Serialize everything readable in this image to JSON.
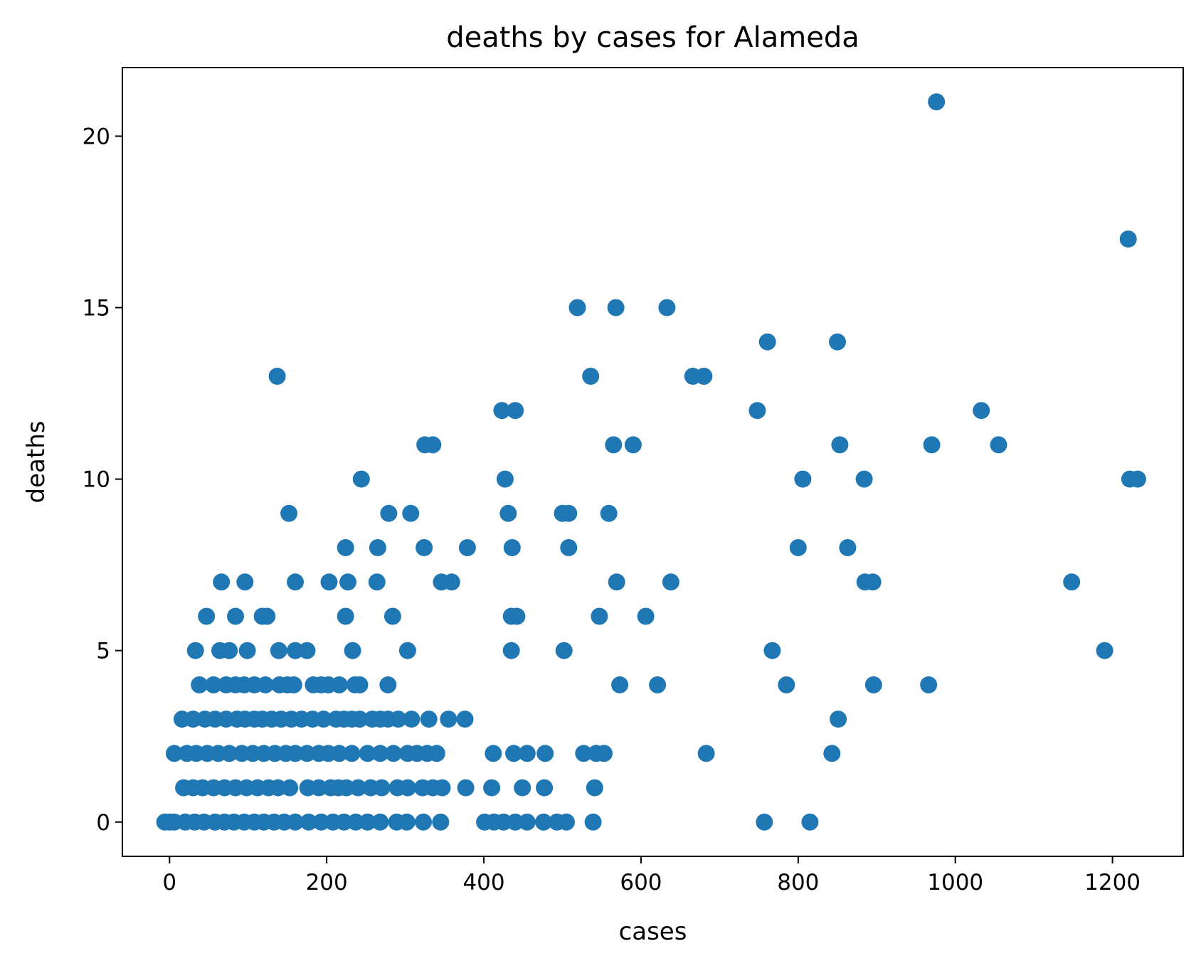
{
  "chart_data": {
    "type": "scatter",
    "title": "deaths by cases for Alameda",
    "xlabel": "cases",
    "ylabel": "deaths",
    "xlim": [
      -60,
      1290
    ],
    "ylim": [
      -1,
      22
    ],
    "xticks": [
      0,
      200,
      400,
      600,
      800,
      1000,
      1200
    ],
    "yticks": [
      0,
      5,
      10,
      15,
      20
    ],
    "grid": false,
    "legend": "none",
    "marker_color": "#1f77b4",
    "series": [
      {
        "points": [
          [
            976,
            21
          ],
          [
            1220,
            17
          ],
          [
            519,
            15
          ],
          [
            568,
            15
          ],
          [
            633,
            15
          ],
          [
            761,
            14
          ],
          [
            850,
            14
          ],
          [
            137,
            13
          ],
          [
            536,
            13
          ],
          [
            666,
            13
          ],
          [
            680,
            13
          ],
          [
            423,
            12
          ],
          [
            440,
            12
          ],
          [
            748,
            12
          ],
          [
            1033,
            12
          ],
          [
            325,
            11
          ],
          [
            335,
            11
          ],
          [
            565,
            11
          ],
          [
            590,
            11
          ],
          [
            853,
            11
          ],
          [
            970,
            11
          ],
          [
            1055,
            11
          ],
          [
            244,
            10
          ],
          [
            427,
            10
          ],
          [
            806,
            10
          ],
          [
            884,
            10
          ],
          [
            1222,
            10
          ],
          [
            1232,
            10
          ],
          [
            152,
            9
          ],
          [
            279,
            9
          ],
          [
            307,
            9
          ],
          [
            431,
            9
          ],
          [
            500,
            9
          ],
          [
            508,
            9
          ],
          [
            559,
            9
          ],
          [
            224,
            8
          ],
          [
            265,
            8
          ],
          [
            324,
            8
          ],
          [
            379,
            8
          ],
          [
            436,
            8
          ],
          [
            508,
            8
          ],
          [
            800,
            8
          ],
          [
            863,
            8
          ],
          [
            66,
            7
          ],
          [
            96,
            7
          ],
          [
            160,
            7
          ],
          [
            203,
            7
          ],
          [
            227,
            7
          ],
          [
            264,
            7
          ],
          [
            346,
            7
          ],
          [
            359,
            7
          ],
          [
            569,
            7
          ],
          [
            638,
            7
          ],
          [
            885,
            7
          ],
          [
            895,
            7
          ],
          [
            1148,
            7
          ],
          [
            47,
            6
          ],
          [
            84,
            6
          ],
          [
            118,
            6
          ],
          [
            124,
            6
          ],
          [
            224,
            6
          ],
          [
            284,
            6
          ],
          [
            435,
            6
          ],
          [
            442,
            6
          ],
          [
            547,
            6
          ],
          [
            606,
            6
          ],
          [
            33,
            5
          ],
          [
            64,
            5
          ],
          [
            76,
            5
          ],
          [
            99,
            5
          ],
          [
            139,
            5
          ],
          [
            160,
            5
          ],
          [
            175,
            5
          ],
          [
            233,
            5
          ],
          [
            303,
            5
          ],
          [
            435,
            5
          ],
          [
            502,
            5
          ],
          [
            767,
            5
          ],
          [
            1190,
            5
          ],
          [
            38,
            4
          ],
          [
            56,
            4
          ],
          [
            72,
            4
          ],
          [
            84,
            4
          ],
          [
            95,
            4
          ],
          [
            108,
            4
          ],
          [
            122,
            4
          ],
          [
            140,
            4
          ],
          [
            150,
            4
          ],
          [
            158,
            4
          ],
          [
            183,
            4
          ],
          [
            193,
            4
          ],
          [
            202,
            4
          ],
          [
            216,
            4
          ],
          [
            236,
            4
          ],
          [
            242,
            4
          ],
          [
            278,
            4
          ],
          [
            573,
            4
          ],
          [
            621,
            4
          ],
          [
            785,
            4
          ],
          [
            896,
            4
          ],
          [
            966,
            4
          ],
          [
            16,
            3
          ],
          [
            30,
            3
          ],
          [
            45,
            3
          ],
          [
            58,
            3
          ],
          [
            72,
            3
          ],
          [
            86,
            3
          ],
          [
            96,
            3
          ],
          [
            108,
            3
          ],
          [
            118,
            3
          ],
          [
            130,
            3
          ],
          [
            142,
            3
          ],
          [
            155,
            3
          ],
          [
            168,
            3
          ],
          [
            182,
            3
          ],
          [
            196,
            3
          ],
          [
            212,
            3
          ],
          [
            222,
            3
          ],
          [
            232,
            3
          ],
          [
            242,
            3
          ],
          [
            258,
            3
          ],
          [
            268,
            3
          ],
          [
            278,
            3
          ],
          [
            291,
            3
          ],
          [
            308,
            3
          ],
          [
            330,
            3
          ],
          [
            355,
            3
          ],
          [
            376,
            3
          ],
          [
            851,
            3
          ],
          [
            6,
            2
          ],
          [
            22,
            2
          ],
          [
            34,
            2
          ],
          [
            48,
            2
          ],
          [
            62,
            2
          ],
          [
            76,
            2
          ],
          [
            92,
            2
          ],
          [
            106,
            2
          ],
          [
            120,
            2
          ],
          [
            134,
            2
          ],
          [
            148,
            2
          ],
          [
            160,
            2
          ],
          [
            175,
            2
          ],
          [
            190,
            2
          ],
          [
            202,
            2
          ],
          [
            216,
            2
          ],
          [
            232,
            2
          ],
          [
            252,
            2
          ],
          [
            268,
            2
          ],
          [
            285,
            2
          ],
          [
            303,
            2
          ],
          [
            315,
            2
          ],
          [
            328,
            2
          ],
          [
            340,
            2
          ],
          [
            412,
            2
          ],
          [
            438,
            2
          ],
          [
            455,
            2
          ],
          [
            478,
            2
          ],
          [
            527,
            2
          ],
          [
            543,
            2
          ],
          [
            553,
            2
          ],
          [
            683,
            2
          ],
          [
            843,
            2
          ],
          [
            18,
            1
          ],
          [
            30,
            1
          ],
          [
            42,
            1
          ],
          [
            56,
            1
          ],
          [
            70,
            1
          ],
          [
            84,
            1
          ],
          [
            98,
            1
          ],
          [
            112,
            1
          ],
          [
            126,
            1
          ],
          [
            138,
            1
          ],
          [
            153,
            1
          ],
          [
            176,
            1
          ],
          [
            190,
            1
          ],
          [
            205,
            1
          ],
          [
            215,
            1
          ],
          [
            225,
            1
          ],
          [
            240,
            1
          ],
          [
            256,
            1
          ],
          [
            270,
            1
          ],
          [
            290,
            1
          ],
          [
            303,
            1
          ],
          [
            322,
            1
          ],
          [
            335,
            1
          ],
          [
            347,
            1
          ],
          [
            377,
            1
          ],
          [
            410,
            1
          ],
          [
            449,
            1
          ],
          [
            477,
            1
          ],
          [
            541,
            1
          ],
          [
            -6,
            0
          ],
          [
            0,
            0
          ],
          [
            6,
            0
          ],
          [
            20,
            0
          ],
          [
            32,
            0
          ],
          [
            44,
            0
          ],
          [
            58,
            0
          ],
          [
            70,
            0
          ],
          [
            82,
            0
          ],
          [
            95,
            0
          ],
          [
            108,
            0
          ],
          [
            120,
            0
          ],
          [
            133,
            0
          ],
          [
            146,
            0
          ],
          [
            160,
            0
          ],
          [
            177,
            0
          ],
          [
            193,
            0
          ],
          [
            208,
            0
          ],
          [
            222,
            0
          ],
          [
            237,
            0
          ],
          [
            252,
            0
          ],
          [
            268,
            0
          ],
          [
            289,
            0
          ],
          [
            302,
            0
          ],
          [
            323,
            0
          ],
          [
            345,
            0
          ],
          [
            401,
            0
          ],
          [
            413,
            0
          ],
          [
            425,
            0
          ],
          [
            440,
            0
          ],
          [
            455,
            0
          ],
          [
            476,
            0
          ],
          [
            493,
            0
          ],
          [
            505,
            0
          ],
          [
            539,
            0
          ],
          [
            757,
            0
          ],
          [
            815,
            0
          ]
        ]
      }
    ]
  }
}
